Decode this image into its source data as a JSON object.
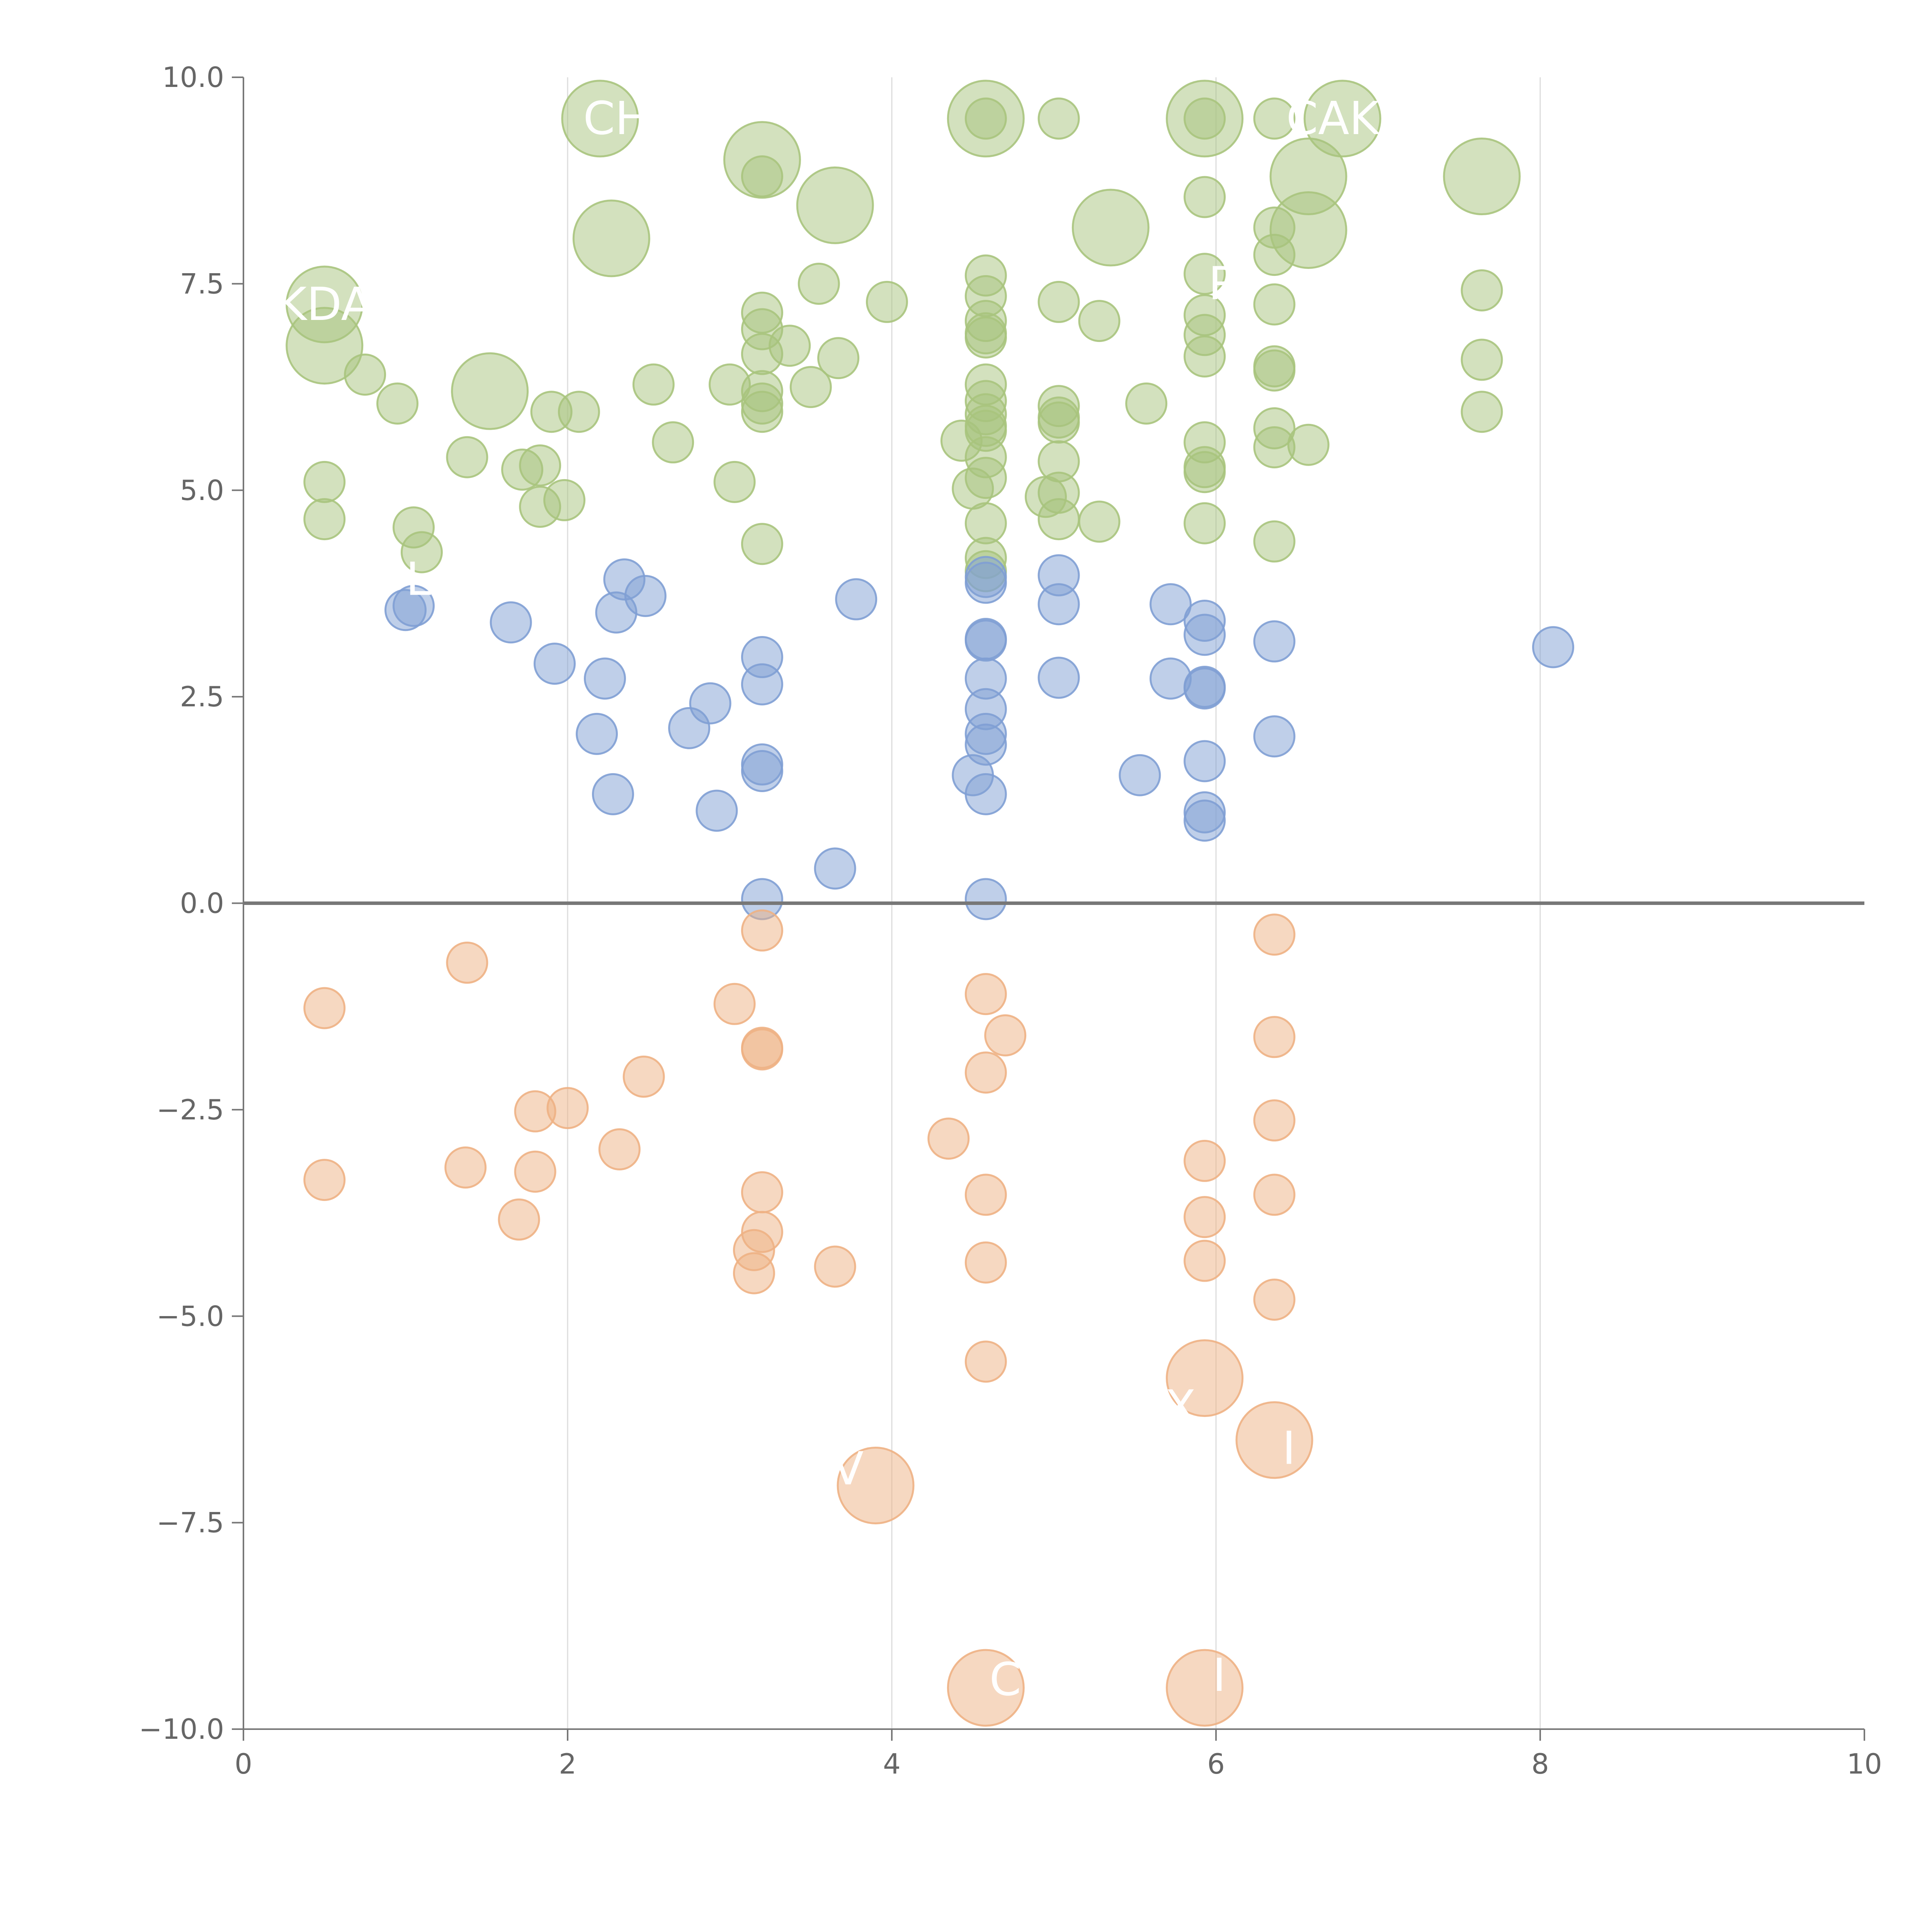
{
  "chart_data": {
    "type": "scatter",
    "title": "",
    "xlabel": "",
    "ylabel": "",
    "xlim": [
      0,
      10
    ],
    "ylim": [
      -10,
      10
    ],
    "x_ticks": [
      {
        "value": 0,
        "label": "0"
      },
      {
        "value": 2,
        "label": "2"
      },
      {
        "value": 4,
        "label": "4"
      },
      {
        "value": 6,
        "label": "6"
      },
      {
        "value": 8,
        "label": "8"
      },
      {
        "value": 10,
        "label": "10"
      }
    ],
    "y_ticks": [
      {
        "value": 10,
        "label": "10.0"
      },
      {
        "value": 7.5,
        "label": "7.5"
      },
      {
        "value": 5,
        "label": "5.0"
      },
      {
        "value": 2.5,
        "label": "2.5"
      },
      {
        "value": 0,
        "label": "0.0"
      },
      {
        "value": -2.5,
        "label": "−2.5"
      },
      {
        "value": -5,
        "label": "−5.0"
      },
      {
        "value": -7.5,
        "label": "−7.5"
      },
      {
        "value": -10,
        "label": "−10.0"
      }
    ],
    "vertical_gridlines": [
      2,
      4,
      6,
      8
    ],
    "zero_line": 0,
    "series": [
      {
        "color": "#a8c47d",
        "points": [
          [
            0.5,
            7.25
          ],
          [
            0.5,
            6.75
          ],
          [
            0.75,
            6.4
          ],
          [
            0.95,
            6.05
          ],
          [
            0.5,
            5.1
          ],
          [
            0.5,
            4.65
          ],
          [
            1.05,
            4.55
          ],
          [
            1.1,
            4.25
          ],
          [
            1.38,
            5.4
          ],
          [
            1.52,
            6.2
          ],
          [
            1.72,
            5.25
          ],
          [
            1.83,
            5.3
          ],
          [
            1.83,
            4.8
          ],
          [
            1.9,
            5.95
          ],
          [
            1.98,
            4.88
          ],
          [
            2.07,
            5.95
          ],
          [
            2.2,
            9.5
          ],
          [
            2.27,
            8.05
          ],
          [
            2.53,
            6.28
          ],
          [
            2.65,
            5.58
          ],
          [
            3.0,
            6.28
          ],
          [
            3.03,
            5.1
          ],
          [
            3.2,
            9.0
          ],
          [
            3.2,
            8.8
          ],
          [
            3.2,
            7.15
          ],
          [
            3.2,
            6.95
          ],
          [
            3.2,
            6.65
          ],
          [
            3.2,
            6.2
          ],
          [
            3.2,
            6.05
          ],
          [
            3.2,
            5.95
          ],
          [
            3.2,
            4.35
          ],
          [
            3.37,
            6.75
          ],
          [
            3.5,
            6.25
          ],
          [
            3.55,
            7.5
          ],
          [
            3.65,
            8.45
          ],
          [
            3.67,
            6.6
          ],
          [
            3.97,
            7.28
          ],
          [
            4.43,
            5.6
          ],
          [
            4.5,
            5.02
          ],
          [
            4.58,
            9.5
          ],
          [
            4.58,
            9.5
          ],
          [
            4.58,
            7.6
          ],
          [
            4.58,
            7.35
          ],
          [
            4.58,
            7.05
          ],
          [
            4.58,
            6.9
          ],
          [
            4.58,
            6.85
          ],
          [
            4.58,
            6.28
          ],
          [
            4.58,
            6.08
          ],
          [
            4.58,
            5.92
          ],
          [
            4.58,
            5.78
          ],
          [
            4.58,
            5.72
          ],
          [
            4.58,
            5.4
          ],
          [
            4.58,
            5.15
          ],
          [
            4.58,
            4.6
          ],
          [
            4.58,
            4.18
          ],
          [
            4.58,
            4.02
          ],
          [
            5.03,
            9.5
          ],
          [
            5.03,
            7.28
          ],
          [
            5.03,
            6.02
          ],
          [
            5.03,
            5.88
          ],
          [
            5.03,
            5.82
          ],
          [
            5.03,
            5.35
          ],
          [
            5.03,
            4.97
          ],
          [
            5.03,
            4.65
          ],
          [
            4.95,
            4.92
          ],
          [
            5.28,
            7.05
          ],
          [
            5.35,
            8.18
          ],
          [
            5.28,
            4.62
          ],
          [
            5.57,
            6.05
          ],
          [
            5.93,
            9.5
          ],
          [
            5.93,
            9.5
          ],
          [
            5.93,
            8.55
          ],
          [
            5.93,
            7.62
          ],
          [
            5.93,
            7.12
          ],
          [
            5.93,
            6.88
          ],
          [
            5.93,
            6.62
          ],
          [
            5.93,
            5.58
          ],
          [
            5.93,
            5.28
          ],
          [
            5.93,
            5.22
          ],
          [
            5.93,
            4.6
          ],
          [
            6.36,
            9.5
          ],
          [
            6.36,
            8.18
          ],
          [
            6.36,
            7.85
          ],
          [
            6.36,
            7.25
          ],
          [
            6.36,
            6.5
          ],
          [
            6.36,
            6.45
          ],
          [
            6.36,
            5.75
          ],
          [
            6.36,
            5.52
          ],
          [
            6.36,
            4.38
          ],
          [
            6.57,
            8.8
          ],
          [
            6.57,
            8.15
          ],
          [
            6.57,
            5.55
          ],
          [
            6.78,
            9.5
          ],
          [
            7.64,
            8.8
          ],
          [
            7.64,
            7.42
          ],
          [
            7.64,
            6.58
          ],
          [
            7.64,
            5.95
          ]
        ],
        "sizes": [
          2,
          2,
          1,
          1,
          1,
          1,
          1,
          1,
          1,
          2,
          1,
          1,
          1,
          1,
          1,
          1,
          2,
          2,
          1,
          1,
          1,
          1,
          2,
          1,
          1,
          1,
          1,
          1,
          1,
          1,
          1,
          1,
          1,
          1,
          2,
          1,
          1,
          1,
          1,
          2,
          1,
          1,
          1,
          1,
          1,
          1,
          1,
          1,
          1,
          1,
          1,
          1,
          1,
          1,
          1,
          1,
          1,
          1,
          1,
          1,
          1,
          1,
          1,
          1,
          1,
          1,
          2,
          1,
          1,
          2,
          1,
          1,
          1,
          1,
          1,
          1,
          1,
          1,
          1,
          1,
          1,
          1,
          1,
          1,
          1,
          1,
          1,
          1,
          1,
          2,
          2,
          1,
          2,
          2,
          1,
          1,
          1
        ]
      },
      {
        "color": "#7f9fd4",
        "points": [
          [
            1.0,
            3.55
          ],
          [
            1.05,
            3.6
          ],
          [
            1.65,
            3.4
          ],
          [
            1.92,
            2.9
          ],
          [
            2.18,
            2.05
          ],
          [
            2.23,
            2.72
          ],
          [
            2.28,
            1.32
          ],
          [
            2.3,
            3.52
          ],
          [
            2.35,
            3.92
          ],
          [
            2.48,
            3.72
          ],
          [
            2.75,
            2.12
          ],
          [
            2.88,
            2.42
          ],
          [
            2.92,
            1.12
          ],
          [
            3.2,
            2.98
          ],
          [
            3.2,
            2.65
          ],
          [
            3.2,
            1.68
          ],
          [
            3.2,
            1.6
          ],
          [
            3.2,
            0.05
          ],
          [
            3.65,
            0.42
          ],
          [
            3.78,
            3.68
          ],
          [
            4.5,
            1.55
          ],
          [
            4.58,
            3.95
          ],
          [
            4.58,
            3.88
          ],
          [
            4.58,
            3.2
          ],
          [
            4.58,
            3.18
          ],
          [
            4.58,
            2.72
          ],
          [
            4.58,
            2.35
          ],
          [
            4.58,
            2.05
          ],
          [
            4.58,
            1.92
          ],
          [
            4.58,
            1.32
          ],
          [
            4.58,
            0.05
          ],
          [
            5.03,
            3.97
          ],
          [
            5.03,
            3.62
          ],
          [
            5.03,
            2.73
          ],
          [
            5.53,
            1.55
          ],
          [
            5.72,
            3.62
          ],
          [
            5.72,
            2.72
          ],
          [
            5.93,
            3.42
          ],
          [
            5.93,
            3.25
          ],
          [
            5.93,
            2.62
          ],
          [
            5.93,
            2.6
          ],
          [
            5.93,
            1.72
          ],
          [
            5.93,
            1.1
          ],
          [
            5.93,
            1.0
          ],
          [
            6.36,
            3.17
          ],
          [
            6.36,
            2.02
          ],
          [
            8.08,
            3.1
          ]
        ],
        "sizes": [
          1,
          1,
          1,
          1,
          1,
          1,
          1,
          1,
          1,
          1,
          1,
          1,
          1,
          1,
          1,
          1,
          1,
          1,
          1,
          1,
          1,
          1,
          1,
          1,
          1,
          1,
          1,
          1,
          1,
          1,
          1,
          1,
          1,
          1,
          1,
          1,
          1,
          1,
          1,
          1,
          1,
          1,
          1,
          1,
          1,
          1,
          1
        ]
      },
      {
        "color": "#eeb184",
        "points": [
          [
            0.5,
            -1.27
          ],
          [
            0.5,
            -3.35
          ],
          [
            1.38,
            -0.72
          ],
          [
            1.37,
            -3.2
          ],
          [
            1.7,
            -3.83
          ],
          [
            1.8,
            -2.52
          ],
          [
            1.8,
            -3.25
          ],
          [
            2.0,
            -2.48
          ],
          [
            2.32,
            -2.98
          ],
          [
            2.47,
            -2.1
          ],
          [
            3.03,
            -1.22
          ],
          [
            3.2,
            -0.33
          ],
          [
            3.2,
            -1.75
          ],
          [
            3.2,
            -1.77
          ],
          [
            3.2,
            -3.5
          ],
          [
            3.2,
            -3.98
          ],
          [
            3.15,
            -4.2
          ],
          [
            3.15,
            -4.48
          ],
          [
            3.65,
            -4.4
          ],
          [
            3.9,
            -7.05
          ],
          [
            4.35,
            -2.85
          ],
          [
            4.58,
            -1.1
          ],
          [
            4.58,
            -2.05
          ],
          [
            4.58,
            -3.53
          ],
          [
            4.58,
            -4.35
          ],
          [
            4.58,
            -5.55
          ],
          [
            4.58,
            -9.5
          ],
          [
            4.7,
            -1.6
          ],
          [
            5.93,
            -3.12
          ],
          [
            5.93,
            -3.8
          ],
          [
            5.93,
            -4.33
          ],
          [
            5.93,
            -5.75
          ],
          [
            5.93,
            -9.5
          ],
          [
            6.36,
            -0.38
          ],
          [
            6.36,
            -1.62
          ],
          [
            6.36,
            -2.63
          ],
          [
            6.36,
            -3.53
          ],
          [
            6.36,
            -4.8
          ],
          [
            6.36,
            -6.5
          ]
        ],
        "sizes": [
          1,
          1,
          1,
          1,
          1,
          1,
          1,
          1,
          1,
          1,
          1,
          1,
          1,
          1,
          1,
          1,
          1,
          1,
          1,
          2,
          1,
          1,
          1,
          1,
          1,
          1,
          2,
          1,
          1,
          1,
          1,
          2,
          2,
          1,
          1,
          1,
          1,
          1,
          2
        ]
      }
    ],
    "point_labels": [
      {
        "text": "KDA",
        "x": 0.5,
        "y": 7.25
      },
      {
        "text": "CH",
        "x": 2.3,
        "y": 9.5
      },
      {
        "text": "CAK",
        "x": 6.72,
        "y": 9.5
      },
      {
        "text": "R",
        "x": 6.05,
        "y": 7.5
      },
      {
        "text": "L",
        "x": 1.08,
        "y": 3.92
      },
      {
        "text": "V",
        "x": 3.73,
        "y": -6.85
      },
      {
        "text": "X",
        "x": 5.78,
        "y": -6.1
      },
      {
        "text": "I",
        "x": 6.45,
        "y": -6.6
      },
      {
        "text": "C",
        "x": 4.7,
        "y": -9.4
      },
      {
        "text": "I",
        "x": 6.02,
        "y": -9.35
      }
    ]
  }
}
